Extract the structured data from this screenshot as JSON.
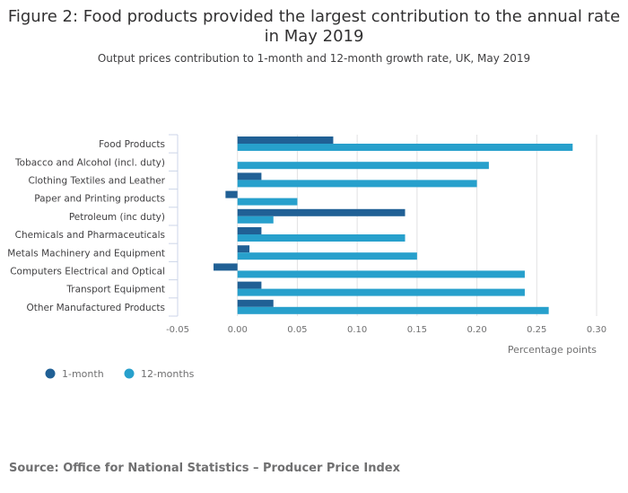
{
  "chart_data": {
    "type": "bar",
    "orientation": "horizontal",
    "title": "Figure 2: Food products provided the largest contribution to the annual rate in May 2019",
    "subtitle": "Output prices contribution to 1-month and 12-month growth rate, UK, May 2019",
    "xlabel": "Percentage points",
    "xlim": [
      -0.05,
      0.3
    ],
    "xticks": [
      "-0.05",
      "0.00",
      "0.05",
      "0.10",
      "0.15",
      "0.20",
      "0.25",
      "0.30"
    ],
    "grid": true,
    "legend_position": "bottom-left",
    "categories": [
      "Food Products",
      "Tobacco and Alcohol (incl. duty)",
      "Clothing Textiles and Leather",
      "Paper and Printing products",
      "Petroleum (inc duty)",
      "Chemicals and Pharmaceuticals",
      "Metals Machinery and Equipment",
      "Computers Electrical and Optical",
      "Transport Equipment",
      "Other Manufactured Products"
    ],
    "series": [
      {
        "name": "1-month",
        "color": "#206095",
        "values": [
          0.08,
          0.0,
          0.02,
          -0.01,
          0.14,
          0.02,
          0.01,
          -0.02,
          0.02,
          0.03
        ]
      },
      {
        "name": "12-months",
        "color": "#27a0cc",
        "values": [
          0.28,
          0.21,
          0.2,
          0.05,
          0.03,
          0.14,
          0.15,
          0.24,
          0.24,
          0.26
        ]
      }
    ]
  },
  "source": "Source: Office for National Statistics – Producer Price Index"
}
